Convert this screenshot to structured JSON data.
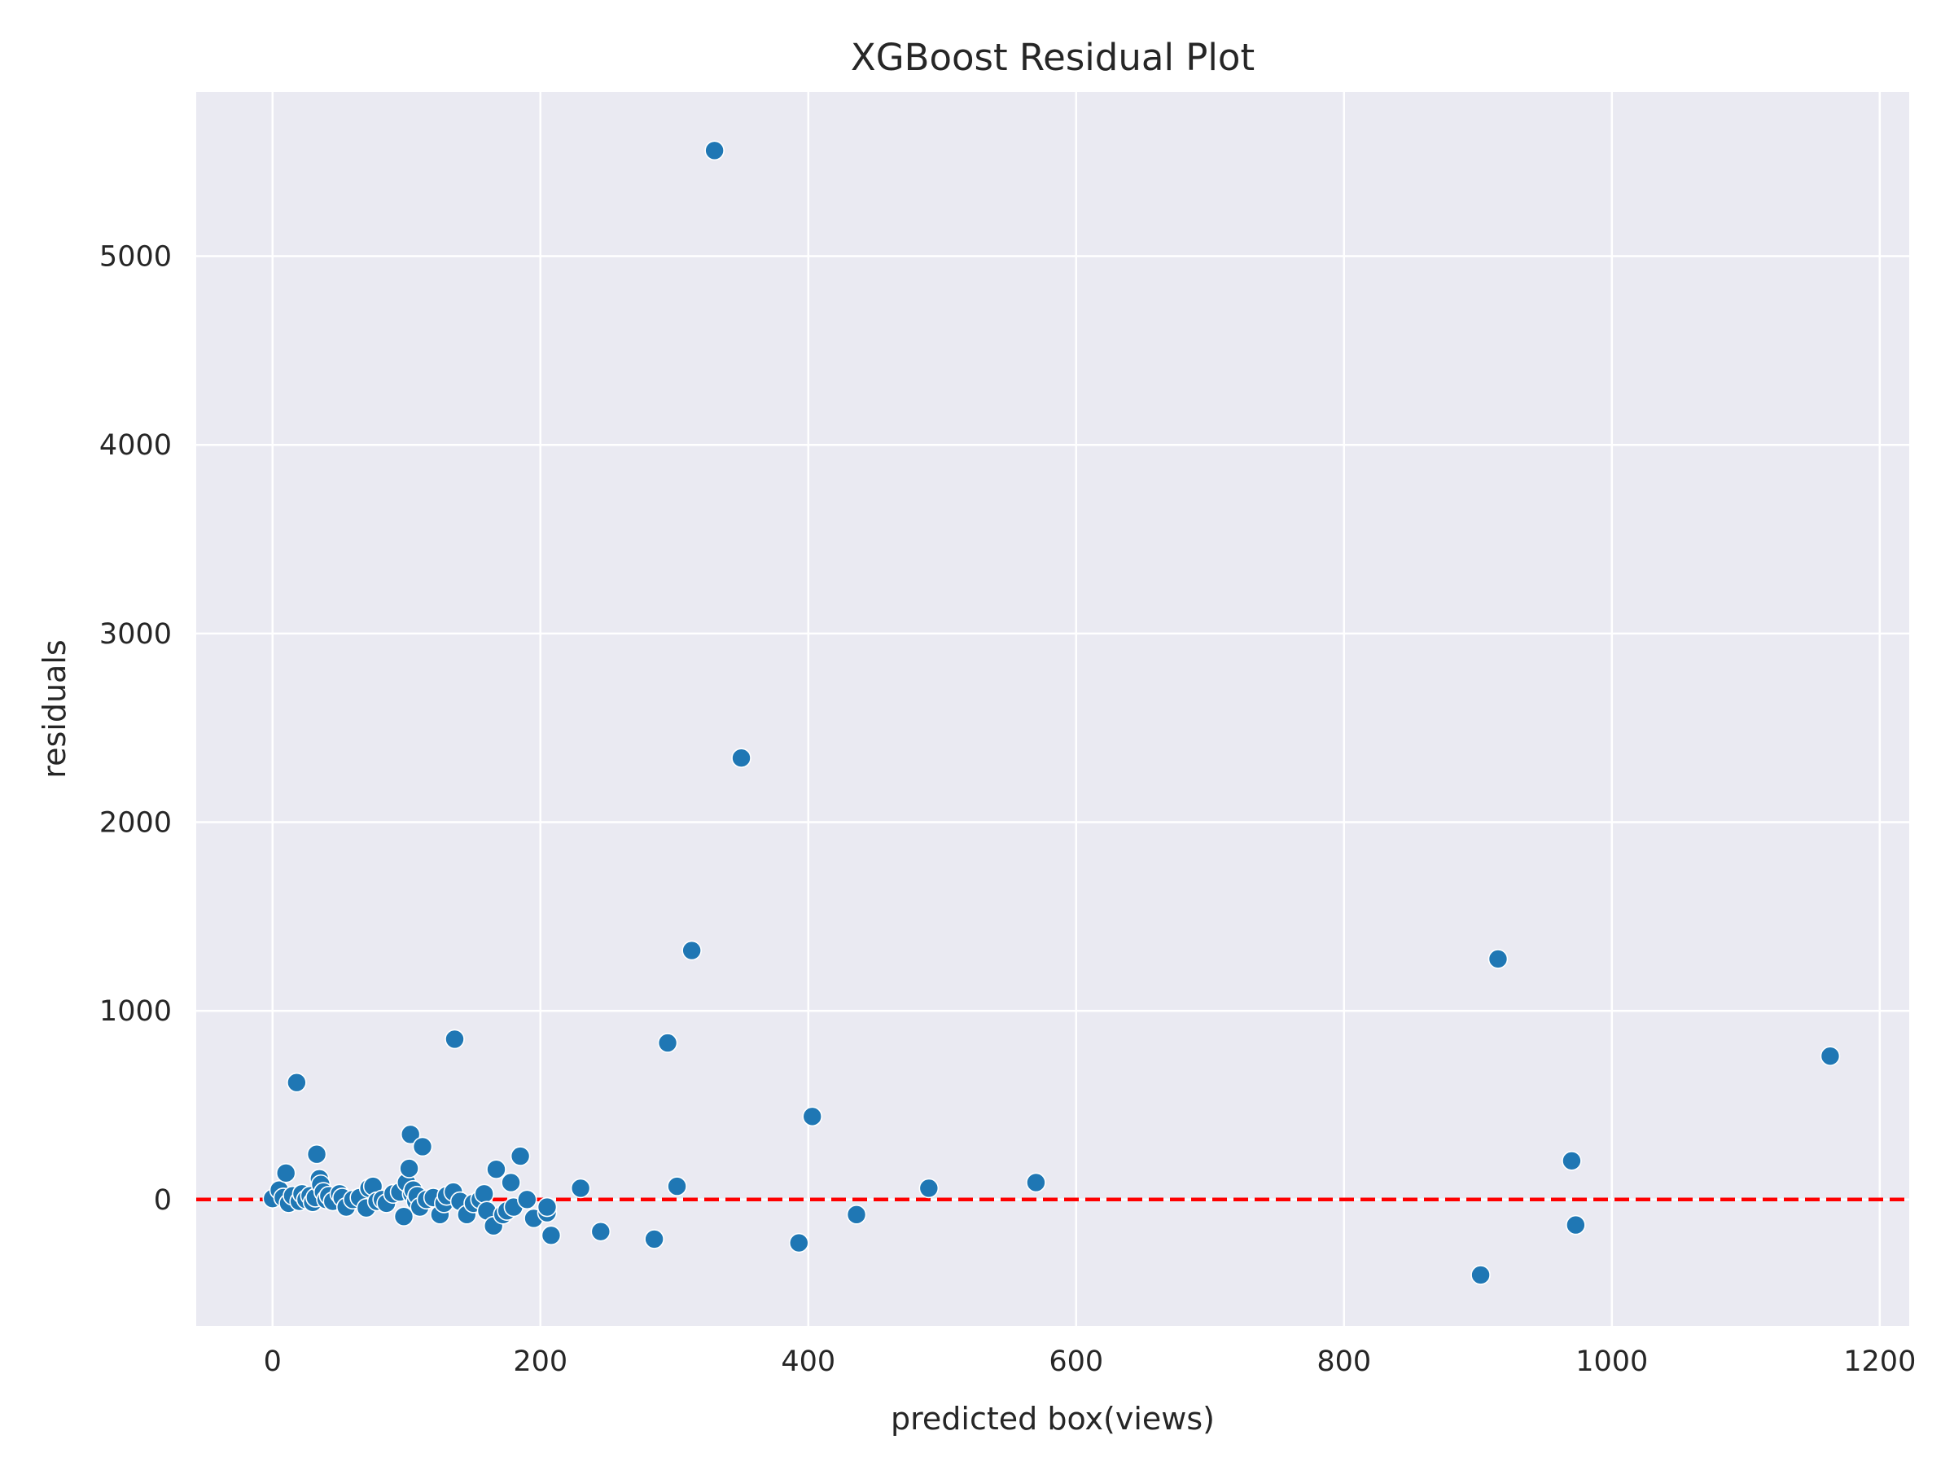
{
  "chart_data": {
    "type": "scatter",
    "title": "XGBoost Residual Plot",
    "xlabel": "predicted box(views)",
    "ylabel": "residuals",
    "xlim": [
      -57,
      1222
    ],
    "ylim": [
      -670,
      5870
    ],
    "xticks": [
      0,
      200,
      400,
      600,
      800,
      1000,
      1200
    ],
    "yticks": [
      0,
      1000,
      2000,
      3000,
      4000,
      5000
    ],
    "grid": true,
    "background_color": "#eaeaf2",
    "point_color": "#1f77b4",
    "reference_line": {
      "y": 0,
      "color": "#ff0000",
      "style": "dashed"
    },
    "points": [
      [
        0,
        5
      ],
      [
        5,
        50
      ],
      [
        8,
        10
      ],
      [
        10,
        140
      ],
      [
        12,
        -20
      ],
      [
        15,
        20
      ],
      [
        18,
        620
      ],
      [
        20,
        -10
      ],
      [
        22,
        30
      ],
      [
        25,
        0
      ],
      [
        28,
        20
      ],
      [
        30,
        -15
      ],
      [
        32,
        10
      ],
      [
        33,
        240
      ],
      [
        35,
        110
      ],
      [
        36,
        80
      ],
      [
        38,
        40
      ],
      [
        40,
        0
      ],
      [
        42,
        20
      ],
      [
        45,
        -10
      ],
      [
        50,
        30
      ],
      [
        52,
        10
      ],
      [
        55,
        -40
      ],
      [
        60,
        0
      ],
      [
        65,
        10
      ],
      [
        70,
        -45
      ],
      [
        72,
        60
      ],
      [
        75,
        70
      ],
      [
        78,
        -10
      ],
      [
        82,
        0
      ],
      [
        85,
        -20
      ],
      [
        90,
        30
      ],
      [
        95,
        40
      ],
      [
        98,
        -90
      ],
      [
        100,
        90
      ],
      [
        102,
        165
      ],
      [
        103,
        345
      ],
      [
        104,
        30
      ],
      [
        105,
        50
      ],
      [
        107,
        -10
      ],
      [
        108,
        20
      ],
      [
        110,
        -40
      ],
      [
        112,
        280
      ],
      [
        115,
        0
      ],
      [
        120,
        10
      ],
      [
        125,
        -80
      ],
      [
        128,
        -20
      ],
      [
        130,
        20
      ],
      [
        135,
        40
      ],
      [
        136,
        850
      ],
      [
        140,
        -10
      ],
      [
        145,
        -80
      ],
      [
        150,
        -20
      ],
      [
        155,
        0
      ],
      [
        158,
        30
      ],
      [
        160,
        -60
      ],
      [
        165,
        -140
      ],
      [
        167,
        160
      ],
      [
        172,
        -80
      ],
      [
        175,
        -60
      ],
      [
        178,
        90
      ],
      [
        180,
        -40
      ],
      [
        185,
        230
      ],
      [
        190,
        0
      ],
      [
        195,
        -100
      ],
      [
        205,
        -70
      ],
      [
        205,
        -40
      ],
      [
        208,
        -190
      ],
      [
        230,
        60
      ],
      [
        245,
        -170
      ],
      [
        285,
        -210
      ],
      [
        295,
        830
      ],
      [
        302,
        70
      ],
      [
        313,
        1320
      ],
      [
        330,
        5560
      ],
      [
        350,
        2340
      ],
      [
        393,
        -230
      ],
      [
        403,
        440
      ],
      [
        436,
        -80
      ],
      [
        490,
        60
      ],
      [
        570,
        90
      ],
      [
        902,
        -400
      ],
      [
        915,
        1275
      ],
      [
        970,
        205
      ],
      [
        973,
        -135
      ],
      [
        1163,
        760
      ]
    ]
  }
}
